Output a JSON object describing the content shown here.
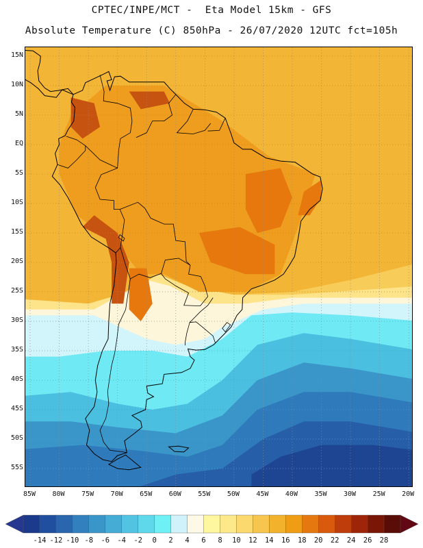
{
  "title": {
    "line1": "CPTEC/INPE/MCT -  Eta Model 15km - GFS",
    "line2": "Absolute Temperature (C) 850hPa - 26/07/2020 12UTC fct=105h"
  },
  "lat_labels": [
    "15N",
    "10N",
    "5N",
    "EQ",
    "5S",
    "10S",
    "15S",
    "20S",
    "25S",
    "30S",
    "35S",
    "40S",
    "45S",
    "50S",
    "55S"
  ],
  "lat_values": [
    15,
    10,
    5,
    0,
    -5,
    -10,
    -15,
    -20,
    -25,
    -30,
    -35,
    -40,
    -45,
    -50,
    -55
  ],
  "lon_labels": [
    "85W",
    "80W",
    "75W",
    "70W",
    "65W",
    "60W",
    "55W",
    "50W",
    "45W",
    "40W",
    "35W",
    "30W",
    "25W",
    "20W"
  ],
  "lon_values": [
    -85,
    -80,
    -75,
    -70,
    -65,
    -60,
    -55,
    -50,
    -45,
    -40,
    -35,
    -30,
    -25,
    -20
  ],
  "colorbar": {
    "labels": [
      "-14",
      "-12",
      "-10",
      "-8",
      "-6",
      "-4",
      "-2",
      "0",
      "2",
      "4",
      "6",
      "8",
      "10",
      "12",
      "14",
      "16",
      "18",
      "20",
      "22",
      "24",
      "26",
      "28"
    ],
    "colors": [
      "#1c3a8c",
      "#1f4f9e",
      "#2a66ad",
      "#3280bd",
      "#3a96c9",
      "#45acd6",
      "#52c3e2",
      "#5fd8ec",
      "#6ef0f5",
      "#d0f3fb",
      "#fef8e6",
      "#fff7a0",
      "#fde98a",
      "#fbd96e",
      "#f7c64e",
      "#f2b22c",
      "#ee9d14",
      "#e5780e",
      "#d95a0c",
      "#bf3d0a",
      "#9e2508",
      "#7a1606",
      "#5a0c06"
    ],
    "low_color": "#26378f",
    "high_color": "#620814"
  },
  "map_colors": {
    "ocean_warm": "#f3b535",
    "tropical_land": "#ee9d1e",
    "hot_zone": "#e6780e",
    "very_hot": "#c6530f",
    "mild_ocean": "#f7cc58",
    "subtropical": "#fde38a",
    "pale": "#fef6da",
    "cool": "#d2f4fb",
    "cyan": "#6fe9f4",
    "light_blue": "#4bbfdf",
    "mid_blue": "#3a96c9",
    "blue": "#2f7abb",
    "deep_blue": "#265fa8",
    "darkest_blue": "#1e4592",
    "border": "#000000",
    "grid": "#8a8a8a"
  }
}
